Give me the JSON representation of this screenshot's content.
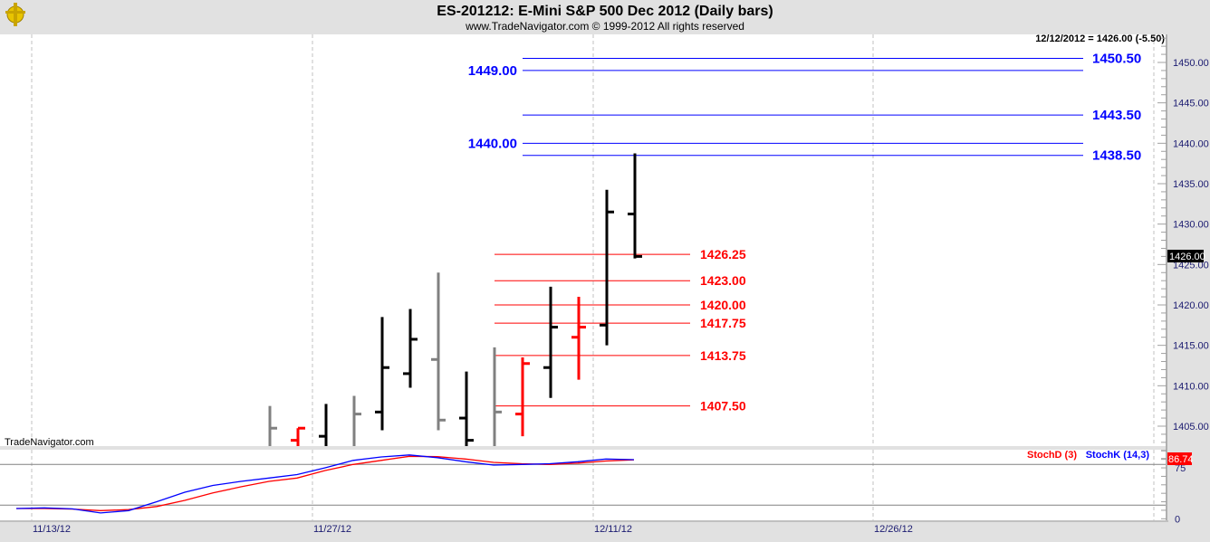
{
  "header": {
    "title": "ES-201212:  E-Mini S&P 500 Dec 2012  (Daily bars)",
    "copyright": "www.TradeNavigator.com © 1999-2012 All rights reserved",
    "last_quote": "12/12/2012 = 1426.00 (-5.50)",
    "logo_icon": "trade-navigator-logo-icon"
  },
  "watermark": "TradeNavigator.com",
  "colors": {
    "up": "#000000",
    "neutral": "#808080",
    "down": "#ff0000",
    "resistance": "#0000ff",
    "support": "#ff0000",
    "stochK": "#0000ff",
    "stochD": "#ff0000"
  },
  "chart_data": [
    {
      "type": "ohlc",
      "title": "ES-201212:  E-Mini S&P 500 Dec 2012  (Daily bars)",
      "ylim": [
        1401,
        1453
      ],
      "yticks": [
        "1405.00",
        "1410.00",
        "1415.00",
        "1420.00",
        "1425.00",
        "1430.00",
        "1435.00",
        "1440.00",
        "1445.00",
        "1450.00"
      ],
      "xticks": [
        "11/13/12",
        "11/27/12",
        "12/11/12",
        "12/26/12"
      ],
      "last_price_label": "1426.00",
      "bars": [
        {
          "date": "11/23/12",
          "open": 1402.0,
          "high": 1407.5,
          "low": 1401.0,
          "close": 1404.75,
          "color": "#808080"
        },
        {
          "date": "11/26/12",
          "open": 1403.25,
          "high": 1404.75,
          "low": 1401.0,
          "close": 1404.75,
          "color": "#ff0000"
        },
        {
          "date": "11/27/12",
          "open": 1403.75,
          "high": 1407.75,
          "low": 1401.0,
          "close": 1401.5,
          "color": "#000000"
        },
        {
          "date": "11/28/12",
          "open": 1401.5,
          "high": 1408.75,
          "low": 1401.0,
          "close": 1406.5,
          "color": "#808080"
        },
        {
          "date": "11/29/12",
          "open": 1406.75,
          "high": 1418.5,
          "low": 1404.5,
          "close": 1412.25,
          "color": "#000000"
        },
        {
          "date": "11/30/12",
          "open": 1411.5,
          "high": 1419.5,
          "low": 1409.75,
          "close": 1415.75,
          "color": "#000000"
        },
        {
          "date": "12/3/12",
          "open": 1413.25,
          "high": 1424.0,
          "low": 1404.5,
          "close": 1405.75,
          "color": "#808080"
        },
        {
          "date": "12/4/12",
          "open": 1406.0,
          "high": 1411.75,
          "low": 1401.0,
          "close": 1403.25,
          "color": "#000000"
        },
        {
          "date": "12/5/12",
          "open": 1402.5,
          "high": 1414.75,
          "low": 1402.5,
          "close": 1406.75,
          "color": "#808080"
        },
        {
          "date": "12/6/12",
          "open": 1406.5,
          "high": 1413.5,
          "low": 1403.75,
          "close": 1412.75,
          "color": "#ff0000"
        },
        {
          "date": "12/7/12",
          "open": 1412.25,
          "high": 1422.25,
          "low": 1408.5,
          "close": 1417.25,
          "color": "#000000"
        },
        {
          "date": "12/10/12",
          "open": 1416.0,
          "high": 1421.0,
          "low": 1410.75,
          "close": 1417.25,
          "color": "#ff0000"
        },
        {
          "date": "12/11/12",
          "open": 1417.5,
          "high": 1434.25,
          "low": 1415.0,
          "close": 1431.5,
          "color": "#000000"
        },
        {
          "date": "12/12/12",
          "open": 1431.25,
          "high": 1438.75,
          "low": 1425.75,
          "close": 1426.0,
          "color": "#000000"
        }
      ],
      "levels": [
        {
          "value": 1450.5,
          "label": "1450.50",
          "color": "#0000ff",
          "side": "right"
        },
        {
          "value": 1449.0,
          "label": "1449.00",
          "color": "#0000ff",
          "side": "left"
        },
        {
          "value": 1443.5,
          "label": "1443.50",
          "color": "#0000ff",
          "side": "right"
        },
        {
          "value": 1440.0,
          "label": "1440.00",
          "color": "#0000ff",
          "side": "left"
        },
        {
          "value": 1438.5,
          "label": "1438.50",
          "color": "#0000ff",
          "side": "right"
        },
        {
          "value": 1426.25,
          "label": "1426.25",
          "color": "#ff0000",
          "side": "support"
        },
        {
          "value": 1423.0,
          "label": "1423.00",
          "color": "#ff0000",
          "side": "support"
        },
        {
          "value": 1420.0,
          "label": "1420.00",
          "color": "#ff0000",
          "side": "support"
        },
        {
          "value": 1417.75,
          "label": "1417.75",
          "color": "#ff0000",
          "side": "support"
        },
        {
          "value": 1413.75,
          "label": "1413.75",
          "color": "#ff0000",
          "side": "support"
        },
        {
          "value": 1407.5,
          "label": "1407.50",
          "color": "#ff0000",
          "side": "support"
        }
      ]
    },
    {
      "type": "line",
      "ylim": [
        0,
        100
      ],
      "yticks": [
        "0",
        "75"
      ],
      "reference_lines": [
        20,
        80
      ],
      "last_value_label": "86.74",
      "series": [
        {
          "name": "StochD (3)",
          "color": "#ff0000",
          "values": [
            15,
            15,
            14.3,
            12,
            13.5,
            18,
            27,
            38,
            47,
            55,
            60,
            71,
            80,
            86,
            92,
            91.5,
            88,
            83,
            81,
            80,
            82,
            85,
            86.74
          ]
        },
        {
          "name": "StochK (14,3)",
          "color": "#0000ff",
          "values": [
            15,
            16,
            14.5,
            8.5,
            12,
            25,
            39,
            49,
            55,
            60,
            65,
            75,
            86,
            91,
            94,
            90,
            84,
            79,
            80,
            81,
            84,
            88,
            87
          ]
        }
      ]
    }
  ]
}
